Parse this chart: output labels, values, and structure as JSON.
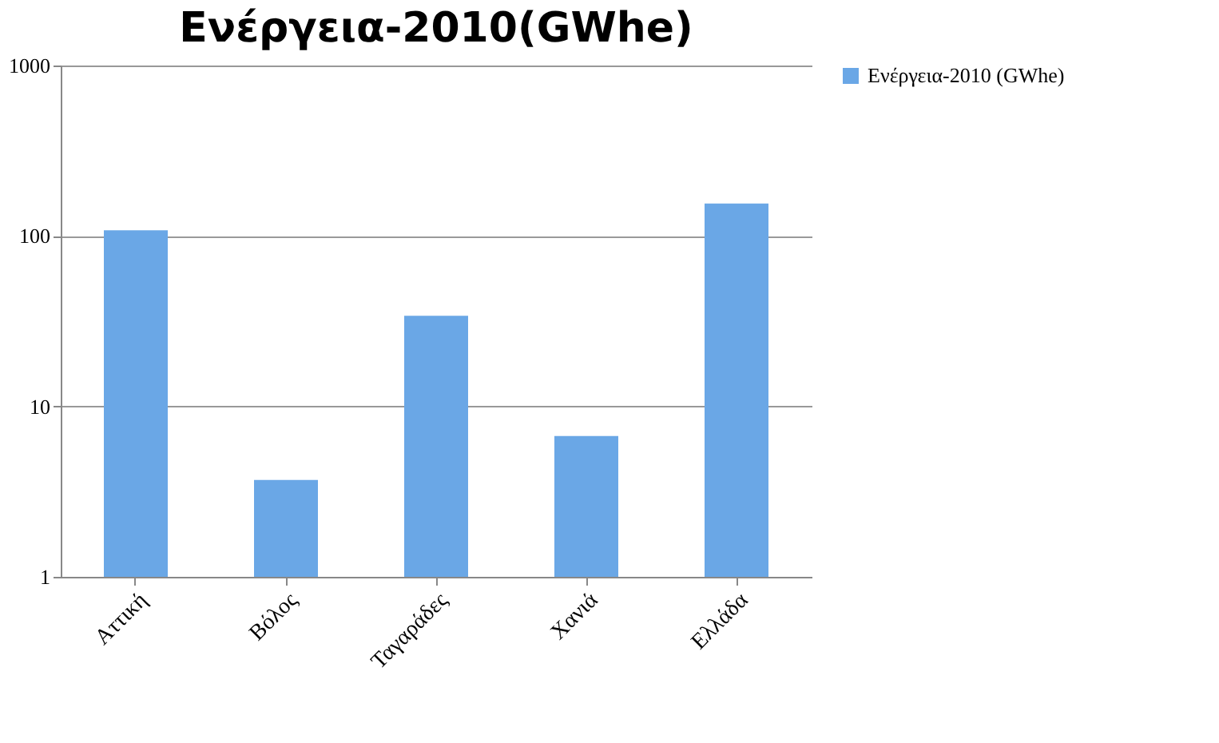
{
  "chart_data": {
    "type": "bar",
    "title": "Ενέργεια-2010(GWhe)",
    "categories": [
      "Αττική",
      "Βόλος",
      "Ταγαράδες",
      "Χανιά",
      "Ελλάδα"
    ],
    "series": [
      {
        "name": "Ενέργεια-2010 (GWhe)",
        "color": "#6aa7e6",
        "values": [
          108,
          3.7,
          34,
          6.7,
          155
        ]
      }
    ],
    "log": true,
    "ylim": [
      1,
      1000
    ],
    "yticks": [
      1,
      10,
      100,
      1000
    ],
    "grid": "y",
    "legend": "right"
  }
}
